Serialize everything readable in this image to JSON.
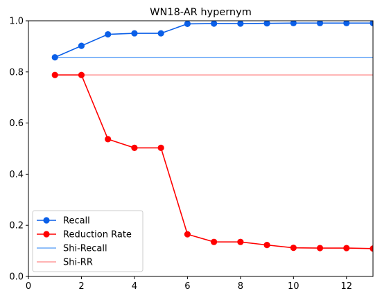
{
  "chart_data": {
    "type": "line",
    "title": "WN18-AR hypernym",
    "xlabel": "",
    "ylabel": "",
    "xlim": [
      0,
      13
    ],
    "ylim": [
      0,
      1
    ],
    "xticks": [
      0,
      2,
      4,
      6,
      8,
      10,
      12
    ],
    "yticks": [
      0.0,
      0.2,
      0.4,
      0.6,
      0.8,
      1.0
    ],
    "ytick_labels": [
      "0.0",
      "0.2",
      "0.4",
      "0.6",
      "0.8",
      "1.0"
    ],
    "grid": false,
    "legend_position": "lower-left",
    "x": [
      1,
      2,
      3,
      4,
      5,
      6,
      7,
      8,
      9,
      10,
      11,
      12,
      13
    ],
    "series": [
      {
        "name": "Recall",
        "color": "#0a5fe8",
        "markers": true,
        "values": [
          0.857,
          0.902,
          0.947,
          0.951,
          0.951,
          0.988,
          0.989,
          0.989,
          0.99,
          0.991,
          0.991,
          0.991,
          0.991
        ]
      },
      {
        "name": "Reduction Rate",
        "color": "#ff0000",
        "markers": true,
        "values": [
          0.788,
          0.788,
          0.537,
          0.503,
          0.503,
          0.165,
          0.135,
          0.135,
          0.123,
          0.112,
          0.111,
          0.111,
          0.109
        ]
      }
    ],
    "reference_lines": [
      {
        "name": "Shi-Recall",
        "color": "#6aa8f7",
        "value": 0.857,
        "x_start": 1,
        "x_end": 13
      },
      {
        "name": "Shi-RR",
        "color": "#ff9a9a",
        "value": 0.788,
        "x_start": 1,
        "x_end": 13
      }
    ]
  }
}
